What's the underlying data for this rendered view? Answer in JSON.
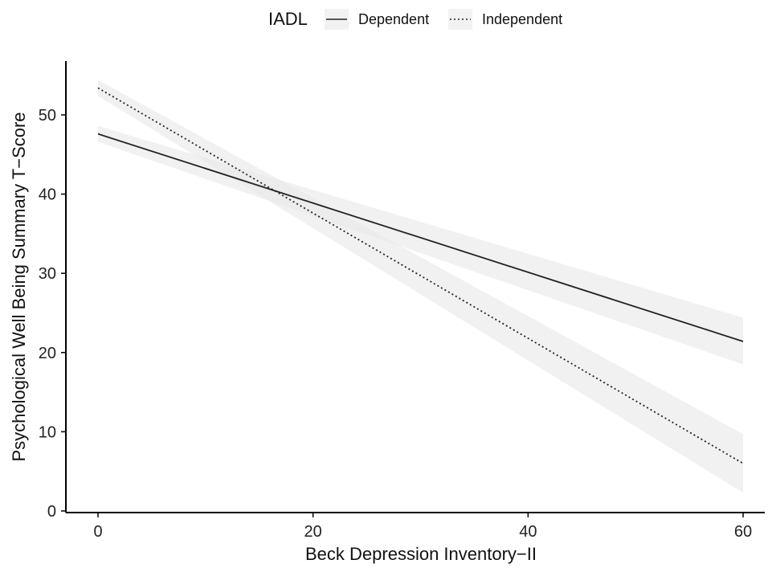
{
  "chart_data": {
    "type": "line",
    "title": "",
    "xlabel": "Beck Depression Inventory−II",
    "ylabel": "Psychological Well Being Summary T−Score",
    "xlim": [
      -3,
      62
    ],
    "ylim": [
      0,
      56
    ],
    "x_ticks": [
      0,
      20,
      40,
      60
    ],
    "y_ticks": [
      0,
      10,
      20,
      30,
      40,
      50
    ],
    "x_tick_labels": [
      "0",
      "20",
      "40",
      "60"
    ],
    "y_tick_labels": [
      "0",
      "10",
      "20",
      "30",
      "40",
      "50"
    ],
    "grid": false,
    "legend": {
      "title": "IADL",
      "position": "top"
    },
    "series": [
      {
        "name": "Dependent",
        "line_style": "solid",
        "color": "#222222",
        "x": [
          0,
          60
        ],
        "y": [
          47.6,
          21.4
        ],
        "ci_lower": [
          46.6,
          18.5
        ],
        "ci_upper": [
          48.6,
          24.4
        ]
      },
      {
        "name": "Independent",
        "line_style": "dotted",
        "color": "#222222",
        "x": [
          0,
          60
        ],
        "y": [
          53.4,
          6.0
        ],
        "ci_lower": [
          52.4,
          2.3
        ],
        "ci_upper": [
          54.4,
          9.7
        ]
      }
    ],
    "ribbon_color": "#e9e9e9"
  }
}
